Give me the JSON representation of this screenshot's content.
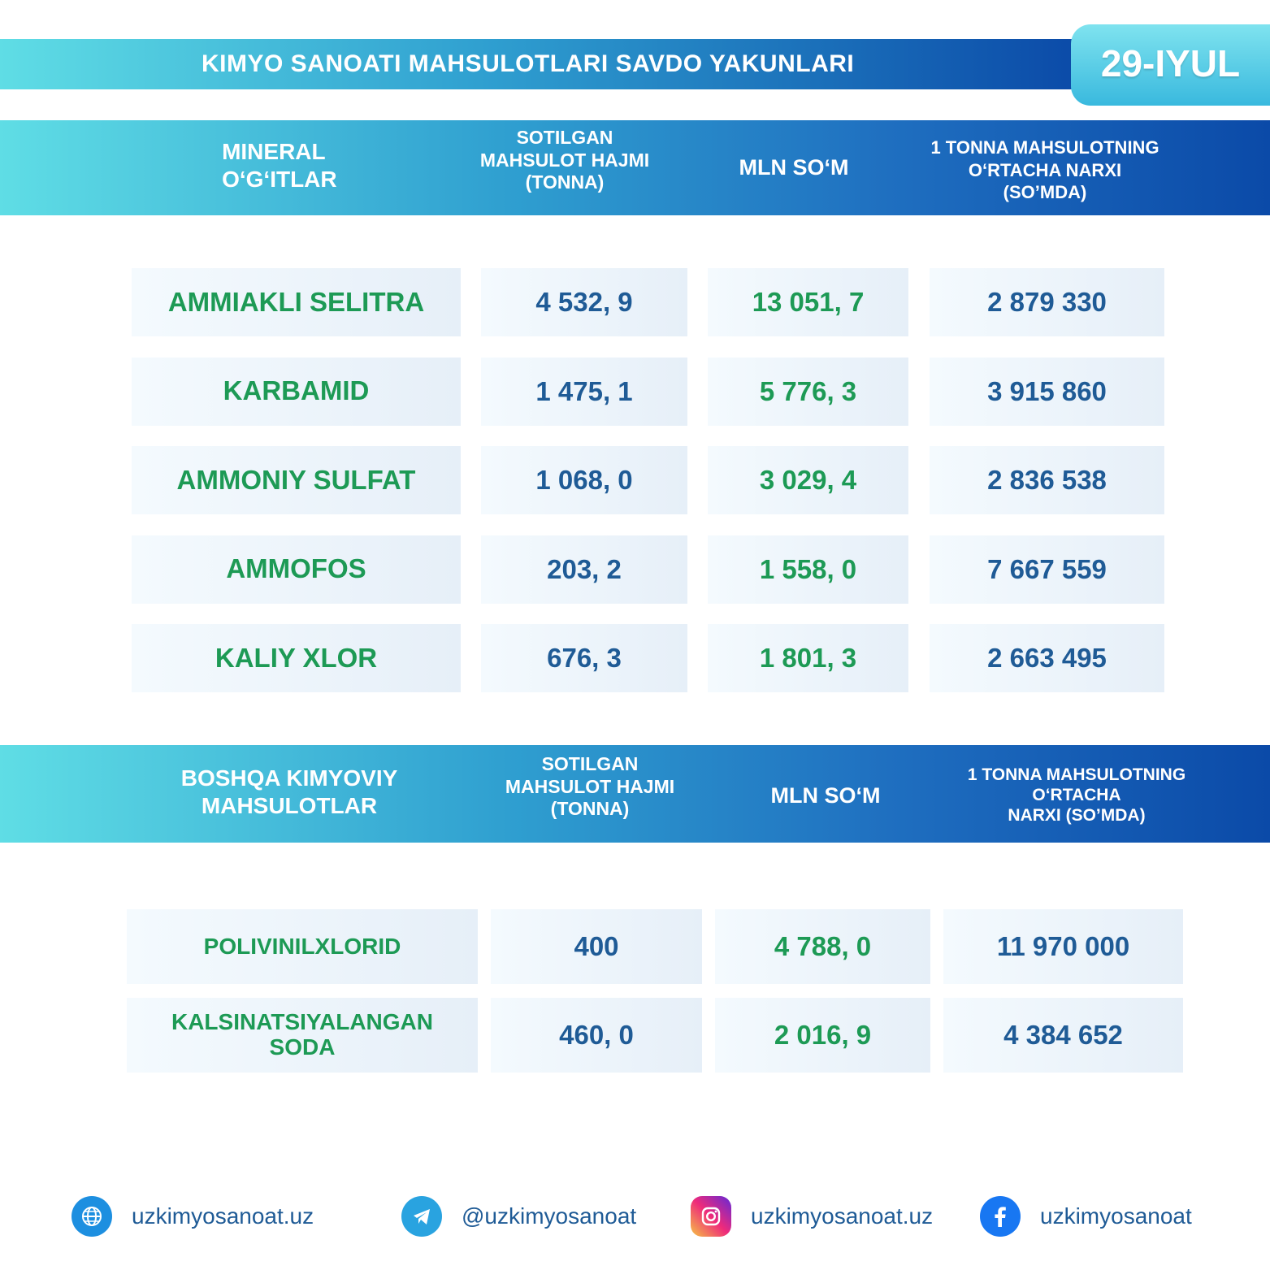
{
  "header": {
    "title": "KIMYO SANOATI MAHSULOTLARI SAVDO YAKUNLARI",
    "date": "29-IYUL"
  },
  "section1": {
    "headers": {
      "category": "MINERAL\nO‘G‘ITLAR",
      "volume": "SOTILGAN\nMAHSULOT HAJMI\n(TONNA)",
      "mln": "MLN SO‘M",
      "price": "1 TONNA MAHSULOTNING\nO‘RTACHA NARXI\n(SO’MDA)"
    },
    "rows": [
      {
        "name": "AMMIAKLI SELITRA",
        "volume": "4 532, 9",
        "mln": "13 051, 7",
        "price": "2 879 330"
      },
      {
        "name": "KARBAMID",
        "volume": "1 475, 1",
        "mln": "5 776, 3",
        "price": "3 915 860"
      },
      {
        "name": "AMMONIY SULFAT",
        "volume": "1 068, 0",
        "mln": "3 029, 4",
        "price": "2 836 538"
      },
      {
        "name": "AMMOFOS",
        "volume": "203, 2",
        "mln": "1 558, 0",
        "price": "7 667 559"
      },
      {
        "name": "KALIY XLOR",
        "volume": "676, 3",
        "mln": "1 801, 3",
        "price": "2 663 495"
      }
    ]
  },
  "section2": {
    "headers": {
      "category": "BOSHQA KIMYOVIY\nMAHSULOTLAR",
      "volume": "SOTILGAN\nMAHSULOT HAJMI\n(TONNA)",
      "mln": "MLN SO‘M",
      "price": "1 TONNA MAHSULOTNING\nO‘RTACHA\nNARXI (SO’MDA)"
    },
    "rows": [
      {
        "name": "POLIVINILXLORID",
        "volume": "400",
        "mln": "4 788, 0",
        "price": "11 970 000"
      },
      {
        "name": "KALSINATSIYALANGAN\nSODA",
        "volume": "460, 0",
        "mln": "2 016, 9",
        "price": "4 384 652"
      }
    ]
  },
  "footer": {
    "website": "uzkimyosanoat.uz",
    "telegram": "@uzkimyosanoat",
    "instagram": "uzkimyosanoat.uz",
    "facebook": "uzkimyosanoat"
  },
  "colors": {
    "green_text": "#1d9a55",
    "blue_text": "#1f5b96",
    "gradient_start": "#5fdde5",
    "gradient_end": "#0b4aa8"
  }
}
